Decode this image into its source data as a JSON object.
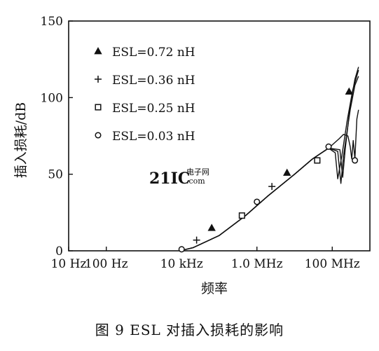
{
  "chart_data": {
    "type": "line",
    "xscale": "log",
    "xlabel": "频率",
    "ylabel": "插入损耗/dB",
    "xticks": [
      {
        "value": 10,
        "label": "10 Hz"
      },
      {
        "value": 100,
        "label": "100 Hz"
      },
      {
        "value": 10000,
        "label": "10 kHz"
      },
      {
        "value": 1000000,
        "label": "1.0 MHz"
      },
      {
        "value": 100000000,
        "label": "100 MHz"
      }
    ],
    "yticks": [
      0,
      50,
      100,
      150
    ],
    "ylim": [
      0,
      150
    ],
    "xlim": [
      10,
      1000000000
    ],
    "grid": false,
    "legend_position": "top-left",
    "series": [
      {
        "name": "ESL=0.72 nH",
        "marker": "triangle",
        "x": [
          9000,
          20000,
          100000,
          500000,
          2000000,
          10000000,
          30000000,
          80000000,
          120000000,
          140000000,
          180000000,
          250000000,
          350000000,
          500000000
        ],
        "y": [
          0,
          2,
          10,
          23,
          36,
          50,
          60,
          67,
          64,
          47,
          62,
          85,
          105,
          118
        ],
        "markers_at": [
          {
            "x": 63000,
            "y": 15
          },
          {
            "x": 6300000,
            "y": 51
          },
          {
            "x": 280000000,
            "y": 104
          }
        ]
      },
      {
        "name": "ESL=0.36 nH",
        "marker": "plus",
        "x": [
          9000,
          20000,
          100000,
          500000,
          2000000,
          10000000,
          30000000,
          80000000,
          140000000,
          170000000,
          200000000,
          300000000,
          400000000,
          500000000
        ],
        "y": [
          0,
          2,
          10,
          23,
          36,
          50,
          60,
          67,
          65,
          44,
          62,
          92,
          108,
          114
        ],
        "markers_at": [
          {
            "x": 25000,
            "y": 7
          },
          {
            "x": 2500000,
            "y": 42
          }
        ]
      },
      {
        "name": "ESL=0.25 nH",
        "marker": "square",
        "x": [
          9000,
          20000,
          100000,
          500000,
          2000000,
          10000000,
          30000000,
          80000000,
          160000000,
          190000000,
          220000000,
          300000000,
          400000000,
          500000000
        ],
        "y": [
          0,
          2,
          10,
          23,
          36,
          50,
          60,
          67,
          66,
          48,
          66,
          95,
          112,
          120
        ],
        "markers_at": [
          {
            "x": 400000,
            "y": 23
          },
          {
            "x": 40000000,
            "y": 59
          }
        ]
      },
      {
        "name": "ESL=0.03 nH",
        "marker": "circle",
        "x": [
          9000,
          20000,
          100000,
          500000,
          2000000,
          10000000,
          30000000,
          80000000,
          150000000,
          200000000,
          260000000,
          300000000,
          330000000,
          360000000,
          400000000,
          450000000,
          500000000
        ],
        "y": [
          0,
          2,
          10,
          23,
          36,
          50,
          60,
          67,
          73,
          76,
          75,
          68,
          60,
          72,
          60,
          86,
          92
        ],
        "markers_at": [
          {
            "x": 10000,
            "y": 1
          },
          {
            "x": 1000000,
            "y": 32
          },
          {
            "x": 80000000,
            "y": 68
          },
          {
            "x": 400000000,
            "y": 59
          }
        ]
      }
    ]
  },
  "watermark": {
    "main": "21IC",
    "sub": "电子网",
    "domain": ".com"
  },
  "caption": "图 9   ESL 对插入损耗的影响"
}
